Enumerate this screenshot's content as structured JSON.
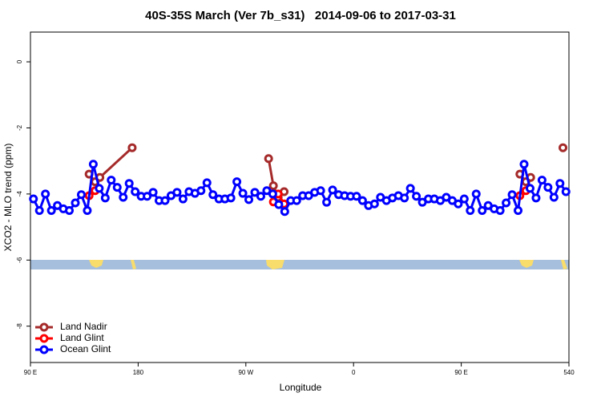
{
  "chart_data": {
    "type": "line",
    "title": "40S-35S March (Ver 7b_s31)   2014-09-06 to 2017-03-31",
    "x_label": "Longitude",
    "y_label": "XCO2 - MLO trend (ppm)",
    "xlim": [
      90,
      540
    ],
    "xticks": [
      {
        "value": 90,
        "label": "90 E"
      },
      180,
      {
        "value": 270,
        "label": "90 W"
      },
      {
        "value": 360,
        "label": "0"
      },
      {
        "value": 450,
        "label": "90 E"
      },
      540
    ],
    "ylim": [
      -9.1,
      0.9
    ],
    "yticks": [
      -8,
      -6,
      -4,
      -2,
      0
    ],
    "legend": "bottom-left",
    "series": [
      {
        "name": "Land Nadir",
        "color": "#a52a2a",
        "x": [
          139,
          144,
          148,
          175,
          null,
          289,
          293,
          297,
          302,
          null,
          499,
          504,
          508,
          null,
          535
        ],
        "values": [
          -3.4,
          -3.63,
          -3.5,
          -2.6,
          null,
          -2.93,
          -3.75,
          -4.1,
          -3.93,
          null,
          -3.4,
          -3.63,
          -3.5,
          null,
          -2.6
        ]
      },
      {
        "name": "Land Glint",
        "color": "#ff0000",
        "x": [
          139,
          144,
          null,
          293,
          297,
          302,
          null,
          499,
          504
        ],
        "values": [
          -4.05,
          -3.9,
          null,
          -4.24,
          -4.0,
          -4.3,
          null,
          -4.05,
          -3.9
        ]
      },
      {
        "name": "Ocean Glint",
        "color": "#0000ff",
        "x": [
          92.5,
          97.5,
          102.5,
          107.5,
          112.5,
          117.5,
          122.5,
          127.5,
          132.5,
          137.5,
          142.5,
          147.5,
          152.5,
          157.5,
          162.5,
          167.5,
          172.5,
          177.5,
          182.5,
          187.5,
          192.5,
          197.5,
          202.5,
          207.5,
          212.5,
          217.5,
          222.5,
          227.5,
          232.5,
          237.5,
          242.5,
          247.5,
          252.5,
          257.5,
          262.5,
          267.5,
          272.5,
          277.5,
          282.5,
          287.5,
          292.5,
          297.5,
          302.5,
          307.5,
          312.5,
          317.5,
          322.5,
          327.5,
          332.5,
          337.5,
          342.5,
          347.5,
          352.5,
          357.5,
          362.5,
          367.5,
          372.5,
          377.5,
          382.5,
          387.5,
          392.5,
          397.5,
          402.5,
          407.5,
          412.5,
          417.5,
          422.5,
          427.5,
          432.5,
          437.5,
          442.5,
          447.5,
          452.5,
          457.5,
          462.5,
          467.5,
          472.5,
          477.5,
          482.5,
          487.5,
          492.5,
          497.5,
          502.5,
          507.5,
          512.5,
          517.5,
          522.5,
          527.5,
          532.5,
          537.5
        ],
        "values": [
          -4.15,
          -4.5,
          -4.0,
          -4.5,
          -4.35,
          -4.45,
          -4.5,
          -4.27,
          -4.02,
          -4.5,
          -3.1,
          -3.83,
          -4.12,
          -3.58,
          -3.8,
          -4.1,
          -3.68,
          -3.93,
          -4.07,
          -4.07,
          -3.95,
          -4.2,
          -4.2,
          -4.05,
          -3.95,
          -4.15,
          -3.93,
          -3.98,
          -3.9,
          -3.66,
          -4.02,
          -4.15,
          -4.15,
          -4.12,
          -3.63,
          -3.98,
          -4.17,
          -3.95,
          -4.07,
          -3.9,
          -4.0,
          -4.32,
          -4.53,
          -4.2,
          -4.2,
          -4.05,
          -4.05,
          -3.95,
          -3.9,
          -4.25,
          -3.88,
          -4.02,
          -4.05,
          -4.07,
          -4.07,
          -4.2,
          -4.35,
          -4.3,
          -4.1,
          -4.2,
          -4.12,
          -4.05,
          -4.12,
          -3.83,
          -4.07,
          -4.25,
          -4.15,
          -4.15,
          -4.2,
          -4.1,
          -4.2,
          -4.3,
          -4.15,
          -4.5,
          -4.0,
          -4.5,
          -4.35,
          -4.45,
          -4.5,
          -4.27,
          -4.02,
          -4.5,
          -3.1,
          -3.83,
          -4.12,
          -3.58,
          -3.8,
          -4.1,
          -3.68,
          -3.93
        ]
      }
    ]
  }
}
